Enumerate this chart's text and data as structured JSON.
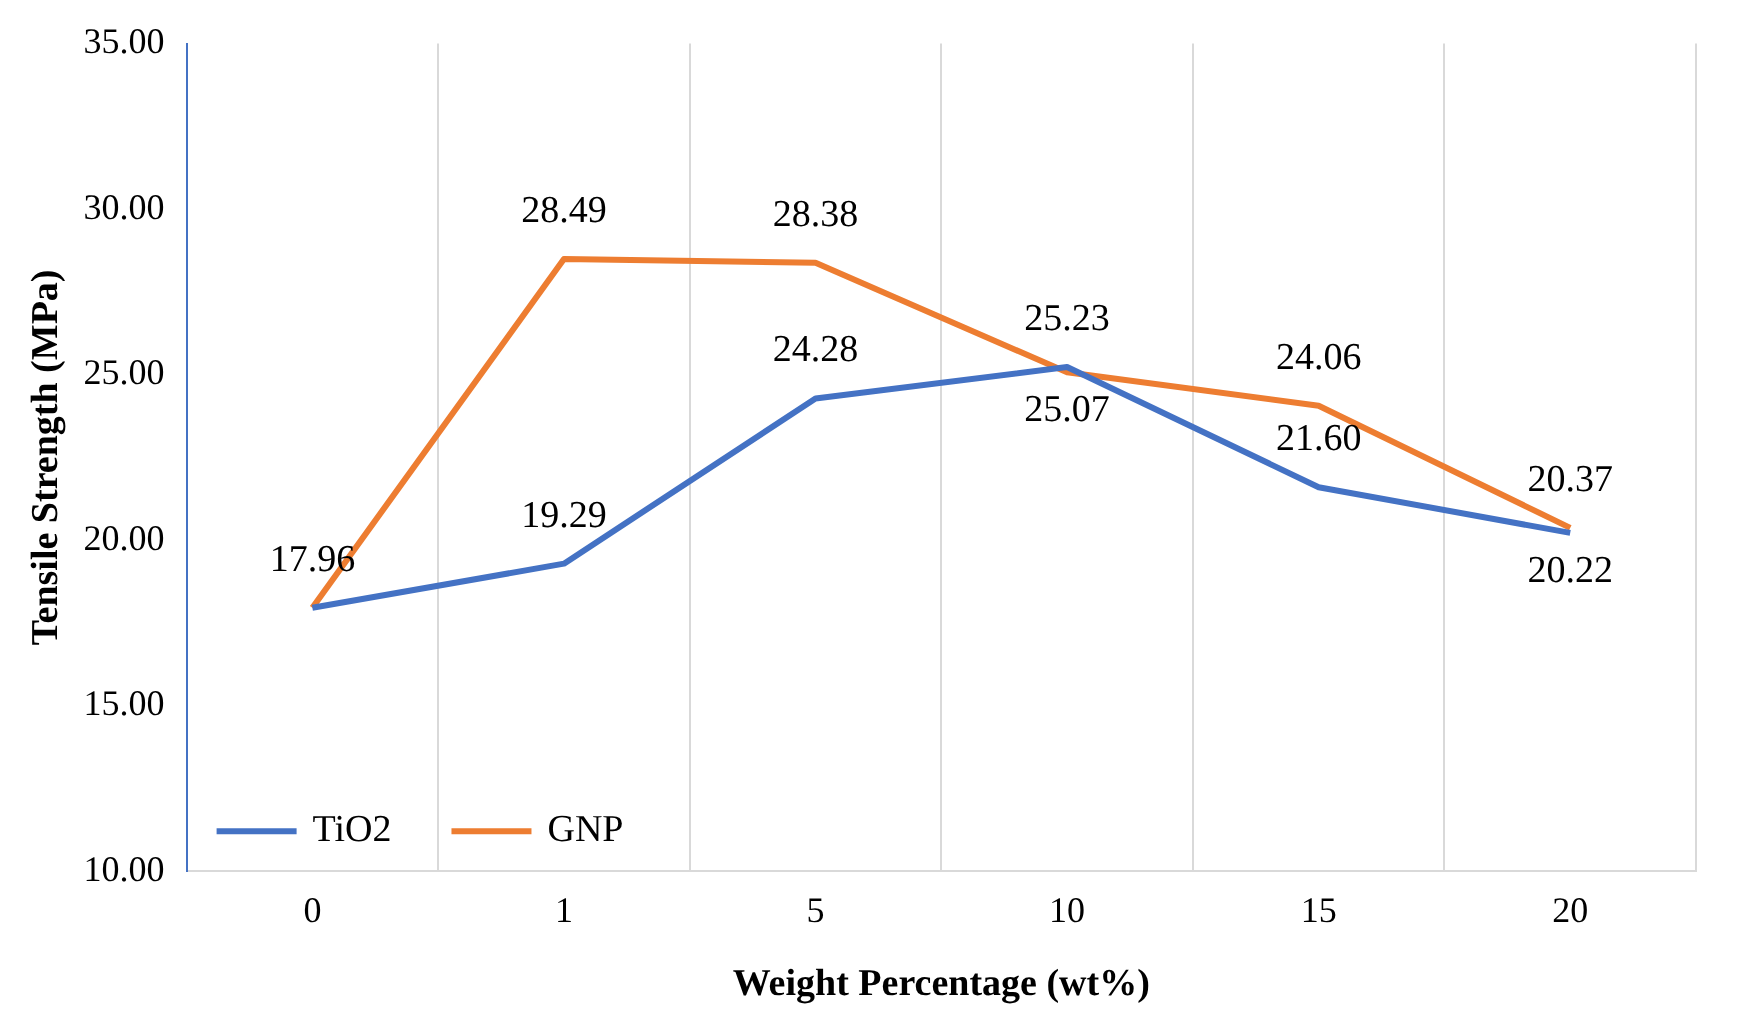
{
  "chart_data": {
    "type": "line",
    "xlabel": "Weight Percentage (wt%)",
    "ylabel": "Tensile Strength (MPa)",
    "categories": [
      "0",
      "1",
      "5",
      "10",
      "15",
      "20"
    ],
    "series": [
      {
        "name": "TiO2",
        "color": "#4472c4",
        "values": [
          17.96,
          19.29,
          24.28,
          25.23,
          21.6,
          20.22
        ],
        "value_labels": [
          "17.96",
          "19.29",
          "24.28",
          "25.23",
          "21.60",
          "20.22"
        ]
      },
      {
        "name": "GNP",
        "color": "#ed7d31",
        "values": [
          17.96,
          28.49,
          28.38,
          25.07,
          24.06,
          20.37
        ],
        "value_labels": [
          null,
          "28.49",
          "28.38",
          "25.07",
          "24.06",
          "20.37"
        ]
      }
    ],
    "ylim": [
      10,
      35
    ],
    "yticks": [
      {
        "value": 10,
        "label": "10.00"
      },
      {
        "value": 15,
        "label": "15.00"
      },
      {
        "value": 20,
        "label": "20.00"
      },
      {
        "value": 25,
        "label": "25.00"
      },
      {
        "value": 30,
        "label": "30.00"
      },
      {
        "value": 35,
        "label": "35.00"
      }
    ],
    "grid": "x",
    "legend": "bottom left",
    "marker": "none",
    "line_style": "solid"
  }
}
